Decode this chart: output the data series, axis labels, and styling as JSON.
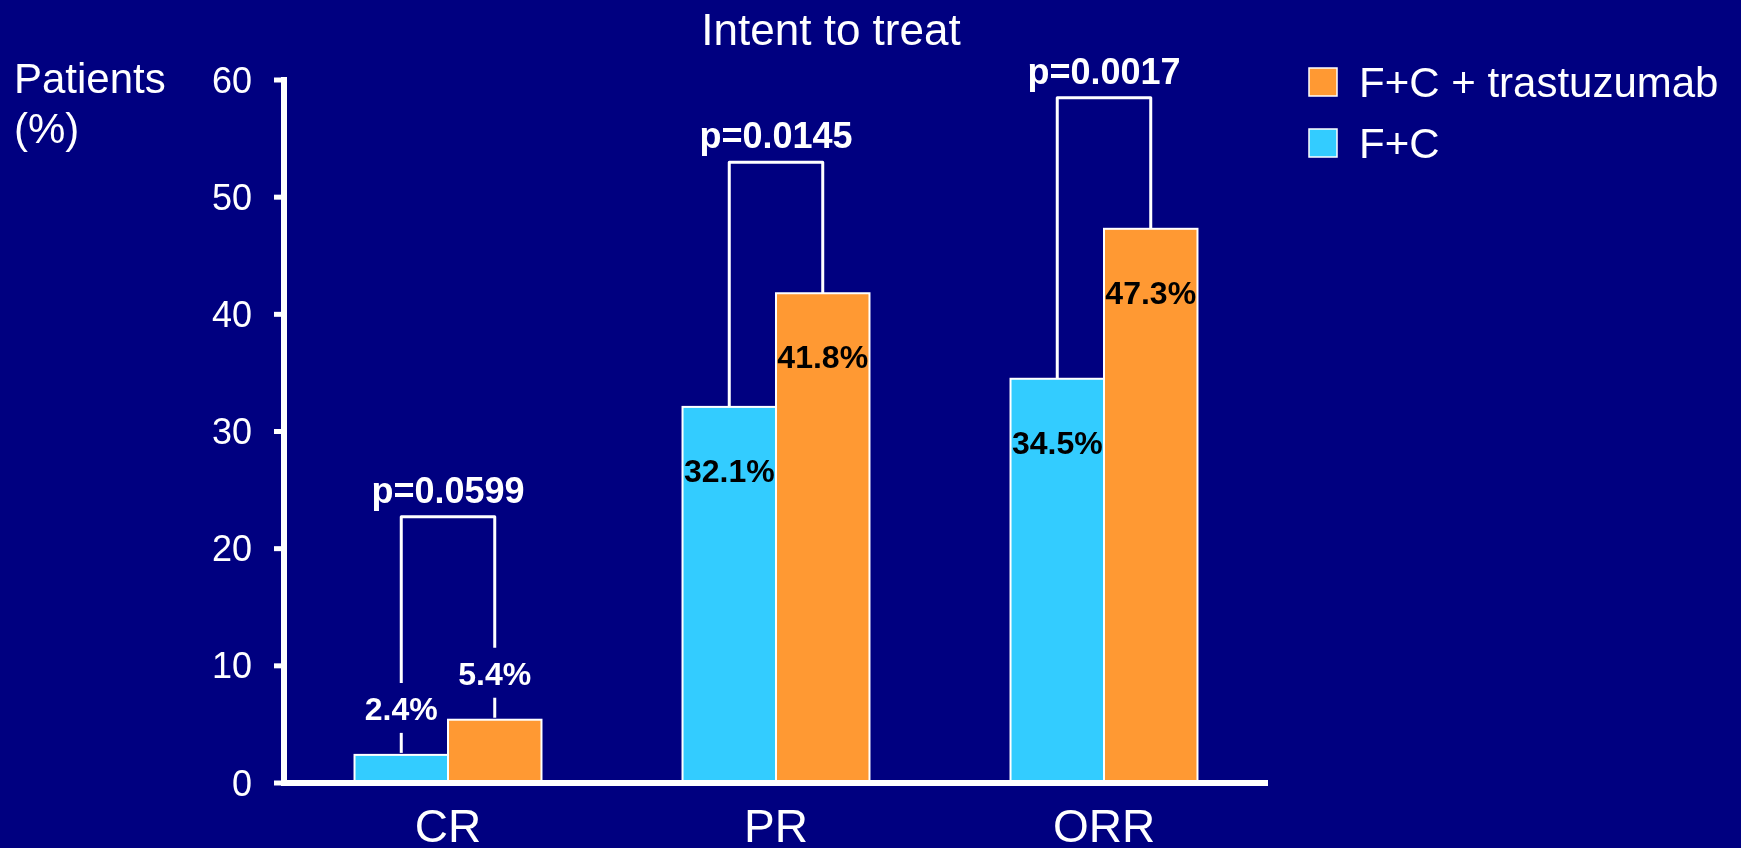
{
  "chart_data": {
    "type": "bar",
    "title": "Intent to treat",
    "ylabel": "Patients (%)",
    "categories": [
      "CR",
      "PR",
      "ORR"
    ],
    "series": [
      {
        "name": "F+C",
        "color": "#33ccff",
        "values": [
          2.4,
          32.1,
          34.5
        ],
        "value_labels": [
          "2.4%",
          "32.1%",
          "34.5%"
        ]
      },
      {
        "name": "F+C + trastuzumab",
        "color": "#ff9933",
        "values": [
          5.4,
          41.8,
          47.3
        ],
        "value_labels": [
          "5.4%",
          "41.8%",
          "47.3%"
        ]
      }
    ],
    "ylim": [
      0,
      60
    ],
    "yticks": [
      0,
      10,
      20,
      30,
      40,
      50,
      60
    ],
    "legend": "top right",
    "annotations": [
      "p=0.0599",
      "p=0.0145",
      "p=0.0017"
    ]
  }
}
